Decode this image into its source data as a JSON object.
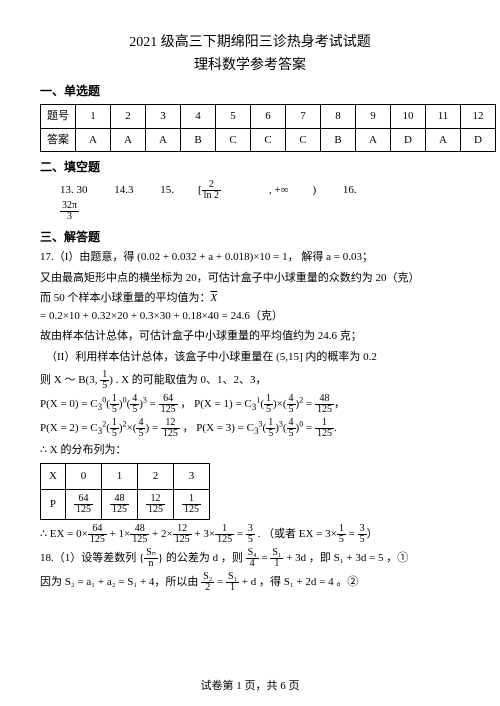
{
  "title1": "2021 级高三下期绵阳三诊热身考试试题",
  "title2": "理科数学参考答案",
  "section1": "一、单选题",
  "ansTable": {
    "hdrLabel": "题号",
    "ansLabel": "答案",
    "nums": [
      "1",
      "2",
      "3",
      "4",
      "5",
      "6",
      "7",
      "8",
      "9",
      "10",
      "11",
      "12"
    ],
    "answers": [
      "A",
      "A",
      "A",
      "B",
      "C",
      "C",
      "C",
      "B",
      "A",
      "D",
      "A",
      "D"
    ]
  },
  "section2": "二、填空题",
  "fills": {
    "f13": "13. 30",
    "f14": "14.3",
    "f15a": "15.",
    "f15_num": "2",
    "f15_den": "ln 2",
    "f15_tail": ", +∞",
    "f16a": "16.",
    "f16_num": "32π",
    "f16_den": "3"
  },
  "section3": "三、解答题",
  "q17_1a": "17.（I）由题意，得 (0.02 + 0.032 + a + 0.018)×10 = 1，   解得 a = 0.03；",
  "q17_1b": "又由最高矩形中点的横坐标为 20，可估计盒子中小球重量的众数约为 20（克）",
  "q17_1c_pre": "而 50 个样本小球重量的平均值为：",
  "q17_1c_mid": " = 0.2×10 + 0.32×20 + 0.3×30 + 0.18×40 = 24.6（克）",
  "q17_1d": "故由样本估计总体，可估计盒子中小球重量的平均值约为 24.6 克；",
  "q17_2a": "（II）利用样本估计总体，该盒子中小球重量在 (5,15] 内的概率为 0.2",
  "q17_2b_pre": "则 X ～ B(3, ",
  "q17_2b_num": "1",
  "q17_2b_den": "5",
  "q17_2b_post": ") . X 的可能取值为 0、1、2、3，",
  "px0_pre": "P(X = 0) = C",
  "p15_n": "1",
  "p15_d": "5",
  "p45_n": "4",
  "p45_d": "5",
  "px0_res_n": "64",
  "px0_res_d": "125",
  "px1_pre": "，  P(X = 1) = C",
  "px1_res_n": "48",
  "px1_res_d": "125",
  "px2_pre": "P(X = 2) = C",
  "px2_res_n": "12",
  "px2_res_d": "125",
  "px3_pre": "，  P(X = 3) = C",
  "px3_res_n": "1",
  "px3_res_d": "125",
  "dist_label": "∴ X 的分布列为：",
  "dist": {
    "xrow": [
      "X",
      "0",
      "1",
      "2",
      "3"
    ],
    "prow_label": "P",
    "p0n": "64",
    "p0d": "125",
    "p1n": "48",
    "p1d": "125",
    "p2n": "12",
    "p2d": "125",
    "p3n": "1",
    "p3d": "125"
  },
  "ex_pre": "∴ EX = 0×",
  "ex_mid1": " + 1×",
  "ex_mid2": " + 2×",
  "ex_mid3": " + 3×",
  "ex_eq": " = ",
  "ex_n": "3",
  "ex_d": "5",
  "ex_alt": "（或者 EX = 3×",
  "q18_1a": "18.（1）设等差数列 ",
  "q18_seq_n": "Sₙ",
  "q18_seq_d": "n",
  "q18_1b": " 的公差为 d ，则 ",
  "q18_s4_n": "S₄",
  "q18_s4_d": "4",
  "q18_s1_n": "S₁",
  "q18_s1_d": "1",
  "q18_1c": " + 3d ，即 S₁ + 3d = 5 ，①",
  "q18_2_pre": "因为 S₂ = a₁ + a₂ = S₁ + 4，所以由 ",
  "q18_s2_n": "S₂",
  "q18_s2_d": "2",
  "q18_2_mid": " = ",
  "q18_2_post": " + d ，得 S₁ + 2d = 4 。②",
  "footer": "试卷第 1 页，共 6 页"
}
